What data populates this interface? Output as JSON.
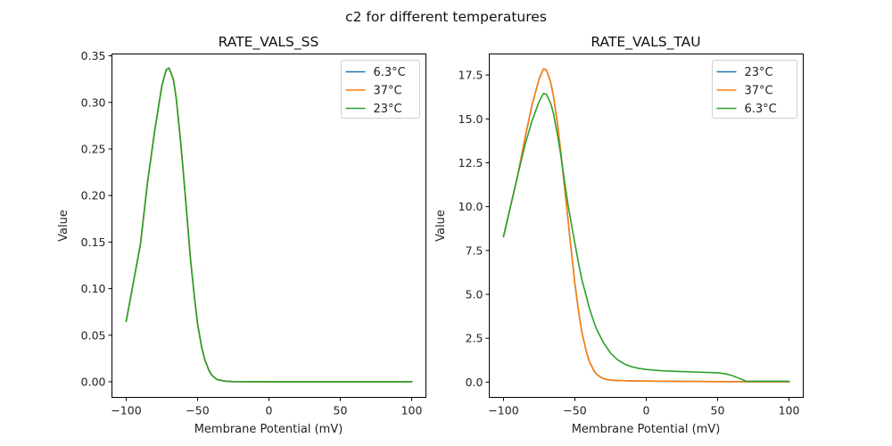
{
  "figure": {
    "suptitle": "c2 for different temperatures"
  },
  "colors": {
    "blue": "#1f77b4",
    "orange": "#ff7f0e",
    "green": "#2ca02c"
  },
  "chart_data": [
    {
      "type": "line",
      "title": "RATE_VALS_SS",
      "xlabel": "Membrane Potential (mV)",
      "ylabel": "Value",
      "xlim": [
        -110,
        110
      ],
      "ylim": [
        -0.0168,
        0.352
      ],
      "xticks": [
        -100,
        -50,
        0,
        50,
        100
      ],
      "xtick_labels": [
        "−100",
        "−50",
        "0",
        "50",
        "100"
      ],
      "yticks": [
        0,
        0.05,
        0.1,
        0.15,
        0.2,
        0.25,
        0.3,
        0.35
      ],
      "ytick_labels": [
        "0.00",
        "0.05",
        "0.10",
        "0.15",
        "0.20",
        "0.25",
        "0.30",
        "0.35"
      ],
      "legend_position": "upper right",
      "grid": false,
      "series": [
        {
          "name": "6.3°C",
          "color": "#1f77b4",
          "x": [
            -100,
            -90,
            -85,
            -80,
            -75,
            -72,
            -70,
            -67,
            -65,
            -62,
            -60,
            -57,
            -55,
            -52,
            -50,
            -47,
            -45,
            -42,
            -40,
            -37,
            -35,
            -30,
            -25,
            0,
            50,
            100
          ],
          "y": [
            0.065,
            0.148,
            0.215,
            0.27,
            0.318,
            0.335,
            0.337,
            0.325,
            0.305,
            0.26,
            0.225,
            0.17,
            0.132,
            0.088,
            0.062,
            0.036,
            0.024,
            0.012,
            0.007,
            0.003,
            0.0018,
            0.0005,
            0.0001,
            0.0,
            0.0,
            0.0
          ]
        },
        {
          "name": "37°C",
          "color": "#ff7f0e",
          "x": [
            -100,
            -90,
            -85,
            -80,
            -75,
            -72,
            -70,
            -67,
            -65,
            -62,
            -60,
            -57,
            -55,
            -52,
            -50,
            -47,
            -45,
            -42,
            -40,
            -37,
            -35,
            -30,
            -25,
            0,
            50,
            100
          ],
          "y": [
            0.065,
            0.148,
            0.215,
            0.27,
            0.318,
            0.335,
            0.337,
            0.325,
            0.305,
            0.26,
            0.225,
            0.17,
            0.132,
            0.088,
            0.062,
            0.036,
            0.024,
            0.012,
            0.007,
            0.003,
            0.0018,
            0.0005,
            0.0001,
            0.0,
            0.0,
            0.0
          ]
        },
        {
          "name": "23°C",
          "color": "#2ca02c",
          "x": [
            -100,
            -90,
            -85,
            -80,
            -75,
            -72,
            -70,
            -67,
            -65,
            -62,
            -60,
            -57,
            -55,
            -52,
            -50,
            -47,
            -45,
            -42,
            -40,
            -37,
            -35,
            -30,
            -25,
            0,
            50,
            100
          ],
          "y": [
            0.065,
            0.148,
            0.215,
            0.27,
            0.318,
            0.335,
            0.337,
            0.325,
            0.305,
            0.26,
            0.225,
            0.17,
            0.132,
            0.088,
            0.062,
            0.036,
            0.024,
            0.012,
            0.007,
            0.003,
            0.0018,
            0.0005,
            0.0001,
            0.0,
            0.0,
            0.0
          ]
        }
      ]
    },
    {
      "type": "line",
      "title": "RATE_VALS_TAU",
      "xlabel": "Membrane Potential (mV)",
      "ylabel": "Value",
      "xlim": [
        -110,
        110
      ],
      "ylim": [
        -0.87,
        18.7
      ],
      "xticks": [
        -100,
        -50,
        0,
        50,
        100
      ],
      "xtick_labels": [
        "−100",
        "−50",
        "0",
        "50",
        "100"
      ],
      "yticks": [
        0,
        2.5,
        5.0,
        7.5,
        10.0,
        12.5,
        15.0,
        17.5
      ],
      "ytick_labels": [
        "0.0",
        "2.5",
        "5.0",
        "7.5",
        "10.0",
        "12.5",
        "15.0",
        "17.5"
      ],
      "legend_position": "upper right",
      "grid": false,
      "series": [
        {
          "name": "23°C",
          "color": "#1f77b4",
          "x": [
            -100,
            -90,
            -85,
            -80,
            -75,
            -72,
            -70,
            -67,
            -65,
            -62,
            -60,
            -57,
            -55,
            -52,
            -50,
            -47,
            -45,
            -42,
            -40,
            -37,
            -35,
            -32,
            -30,
            -27,
            -25,
            -20,
            -10,
            0,
            25,
            50,
            75,
            100
          ],
          "y": [
            8.3,
            11.8,
            13.9,
            15.8,
            17.3,
            17.85,
            17.8,
            17.1,
            16.3,
            14.6,
            13.2,
            10.9,
            9.4,
            7.1,
            5.6,
            3.8,
            2.8,
            1.75,
            1.2,
            0.7,
            0.47,
            0.28,
            0.2,
            0.14,
            0.12,
            0.09,
            0.07,
            0.06,
            0.04,
            0.03,
            0.02,
            0.02
          ]
        },
        {
          "name": "37°C",
          "color": "#ff7f0e",
          "x": [
            -100,
            -90,
            -85,
            -80,
            -75,
            -72,
            -70,
            -67,
            -65,
            -62,
            -60,
            -57,
            -55,
            -52,
            -50,
            -47,
            -45,
            -42,
            -40,
            -37,
            -35,
            -32,
            -30,
            -27,
            -25,
            -20,
            -10,
            0,
            25,
            50,
            75,
            100
          ],
          "y": [
            8.3,
            11.8,
            13.9,
            15.8,
            17.3,
            17.85,
            17.8,
            17.1,
            16.3,
            14.6,
            13.2,
            10.9,
            9.4,
            7.1,
            5.6,
            3.8,
            2.8,
            1.75,
            1.2,
            0.7,
            0.47,
            0.28,
            0.2,
            0.14,
            0.12,
            0.09,
            0.07,
            0.06,
            0.04,
            0.03,
            0.02,
            0.02
          ]
        },
        {
          "name": "6.3°C",
          "color": "#2ca02c",
          "x": [
            -100,
            -90,
            -85,
            -80,
            -75,
            -72,
            -70,
            -67,
            -65,
            -62,
            -60,
            -57,
            -55,
            -52,
            -50,
            -47,
            -45,
            -42,
            -40,
            -37,
            -35,
            -30,
            -25,
            -20,
            -15,
            -10,
            -5,
            0,
            10,
            25,
            40,
            50,
            55,
            60,
            65,
            70,
            80,
            100
          ],
          "y": [
            8.3,
            11.8,
            13.5,
            14.9,
            16.0,
            16.45,
            16.4,
            15.9,
            15.3,
            14.0,
            13.0,
            11.3,
            10.2,
            8.8,
            7.9,
            6.6,
            5.8,
            4.9,
            4.25,
            3.5,
            3.05,
            2.25,
            1.65,
            1.27,
            1.02,
            0.87,
            0.78,
            0.72,
            0.65,
            0.6,
            0.56,
            0.53,
            0.48,
            0.38,
            0.22,
            0.05,
            0.05,
            0.05
          ]
        }
      ]
    }
  ]
}
